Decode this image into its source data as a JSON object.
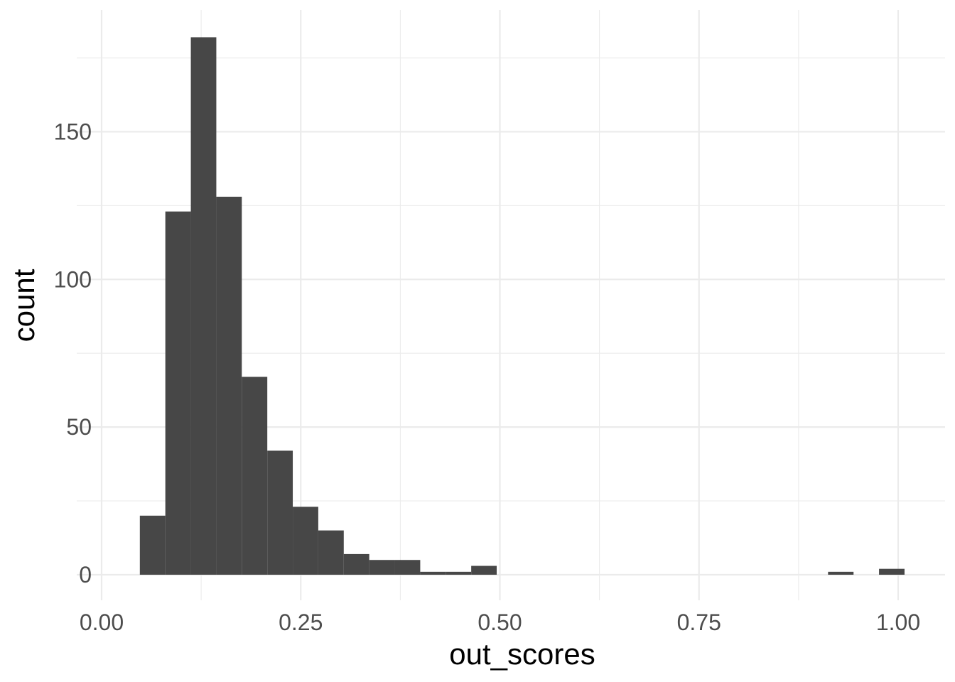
{
  "chart_data": {
    "type": "bar",
    "subtype": "histogram",
    "title": "",
    "xlabel": "out_scores",
    "ylabel": "count",
    "xlim": [
      0,
      1.05
    ],
    "ylim": [
      0,
      182
    ],
    "x_ticks": [
      {
        "value": 0,
        "label": "0.00"
      },
      {
        "value": 0.25,
        "label": "0.25"
      },
      {
        "value": 0.5,
        "label": "0.50"
      },
      {
        "value": 0.75,
        "label": "0.75"
      },
      {
        "value": 1.0,
        "label": "1.00"
      }
    ],
    "y_ticks": [
      {
        "value": 0,
        "label": "0"
      },
      {
        "value": 50,
        "label": "50"
      },
      {
        "value": 100,
        "label": "100"
      },
      {
        "value": 150,
        "label": "150"
      }
    ],
    "bins": [
      {
        "x0": 0.048,
        "x1": 0.08,
        "count": 20
      },
      {
        "x0": 0.08,
        "x1": 0.112,
        "count": 123
      },
      {
        "x0": 0.112,
        "x1": 0.144,
        "count": 182
      },
      {
        "x0": 0.144,
        "x1": 0.176,
        "count": 128
      },
      {
        "x0": 0.176,
        "x1": 0.208,
        "count": 67
      },
      {
        "x0": 0.208,
        "x1": 0.24,
        "count": 42
      },
      {
        "x0": 0.24,
        "x1": 0.272,
        "count": 23
      },
      {
        "x0": 0.272,
        "x1": 0.304,
        "count": 15
      },
      {
        "x0": 0.304,
        "x1": 0.336,
        "count": 7
      },
      {
        "x0": 0.336,
        "x1": 0.368,
        "count": 5
      },
      {
        "x0": 0.368,
        "x1": 0.4,
        "count": 5
      },
      {
        "x0": 0.4,
        "x1": 0.432,
        "count": 1
      },
      {
        "x0": 0.432,
        "x1": 0.464,
        "count": 1
      },
      {
        "x0": 0.464,
        "x1": 0.496,
        "count": 3
      },
      {
        "x0": 0.912,
        "x1": 0.944,
        "count": 1
      },
      {
        "x0": 0.976,
        "x1": 1.008,
        "count": 2
      }
    ],
    "grid": true,
    "bar_color": "#474747",
    "grid_color": "#ebebeb",
    "background": "#ffffff"
  }
}
